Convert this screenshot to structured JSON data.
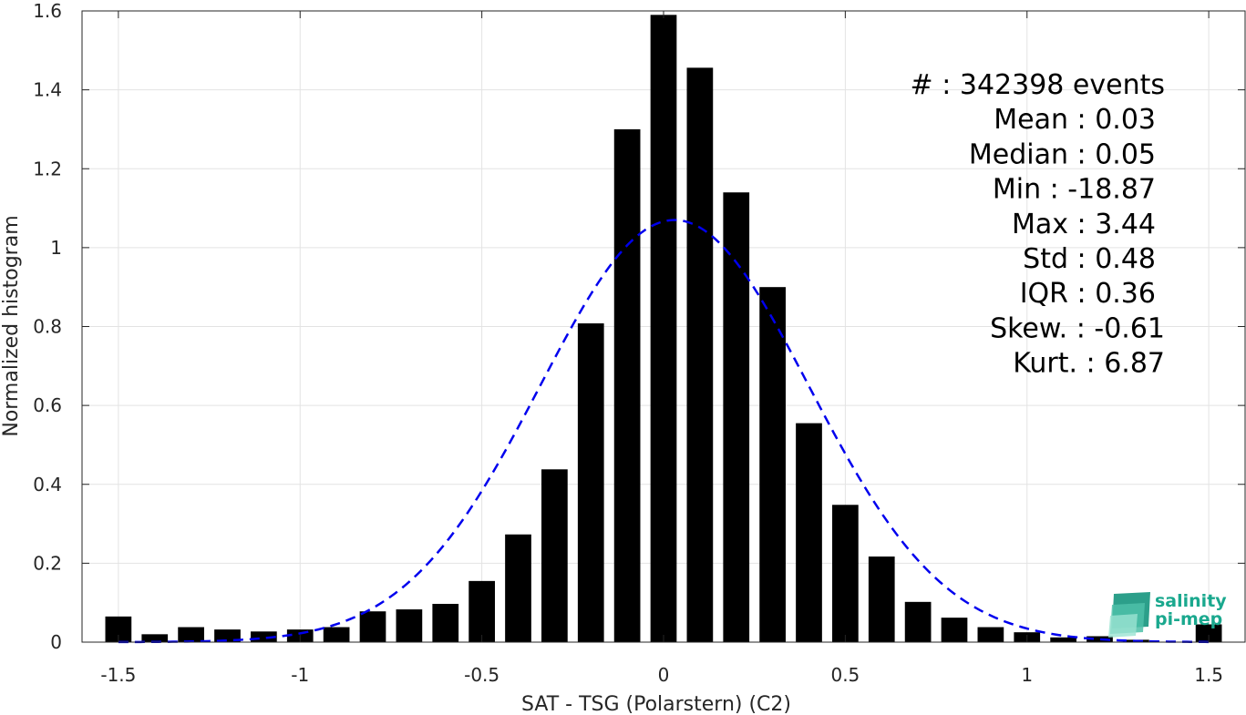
{
  "chart_data": {
    "type": "bar",
    "xlabel": "SAT - TSG (Polarstern) (C2)",
    "ylabel": "Normalized histogram",
    "xlim": [
      -1.6,
      1.6
    ],
    "ylim": [
      0,
      1.6
    ],
    "x_ticks": [
      -1.5,
      -1,
      -0.5,
      0,
      0.5,
      1,
      1.5
    ],
    "x_tick_labels": [
      "-1.5",
      "-1",
      "-0.5",
      "0",
      "0.5",
      "1",
      "1.5"
    ],
    "y_ticks": [
      0,
      0.2,
      0.4,
      0.6,
      0.8,
      1,
      1.2,
      1.4,
      1.6
    ],
    "y_tick_labels": [
      "0",
      "0.2",
      "0.4",
      "0.6",
      "0.8",
      "1",
      "1.2",
      "1.4",
      "1.6"
    ],
    "grid": true,
    "bar_color": "#000000",
    "curve_color": "#0000ee",
    "bin_width": 0.1,
    "x": [
      -1.5,
      -1.4,
      -1.3,
      -1.2,
      -1.1,
      -1.0,
      -0.9,
      -0.8,
      -0.7,
      -0.6,
      -0.5,
      -0.4,
      -0.3,
      -0.2,
      -0.1,
      0.0,
      0.1,
      0.2,
      0.3,
      0.4,
      0.5,
      0.6,
      0.7,
      0.8,
      0.9,
      1.0,
      1.1,
      1.2,
      1.3,
      1.5
    ],
    "values": [
      0.065,
      0.02,
      0.038,
      0.032,
      0.027,
      0.032,
      0.038,
      0.078,
      0.083,
      0.097,
      0.155,
      0.273,
      0.438,
      0.808,
      1.3,
      1.59,
      1.456,
      1.14,
      0.9,
      0.555,
      0.348,
      0.217,
      0.102,
      0.062,
      0.038,
      0.025,
      0.012,
      0.015,
      0.006,
      0.045
    ],
    "fit_curve": {
      "type": "gaussian",
      "style": "dashed",
      "mean": 0.03,
      "std": 0.37,
      "peak": 1.07
    },
    "stats": [
      {
        "label": "#  : 342398 events",
        "anchor": "end"
      },
      {
        "label": "Mean : 0.03",
        "anchor": "end"
      },
      {
        "label": "Median : 0.05",
        "anchor": "end"
      },
      {
        "label": "Min : -18.87",
        "anchor": "end"
      },
      {
        "label": "Max : 3.44",
        "anchor": "end"
      },
      {
        "label": "Std : 0.48",
        "anchor": "end"
      },
      {
        "label": "IQR : 0.36",
        "anchor": "end"
      },
      {
        "label": "Skew. : -0.61",
        "anchor": "end"
      },
      {
        "label": "Kurt. : 6.87",
        "anchor": "end"
      }
    ]
  },
  "logo": {
    "line1": "salinity",
    "line2": "pi-mep"
  }
}
